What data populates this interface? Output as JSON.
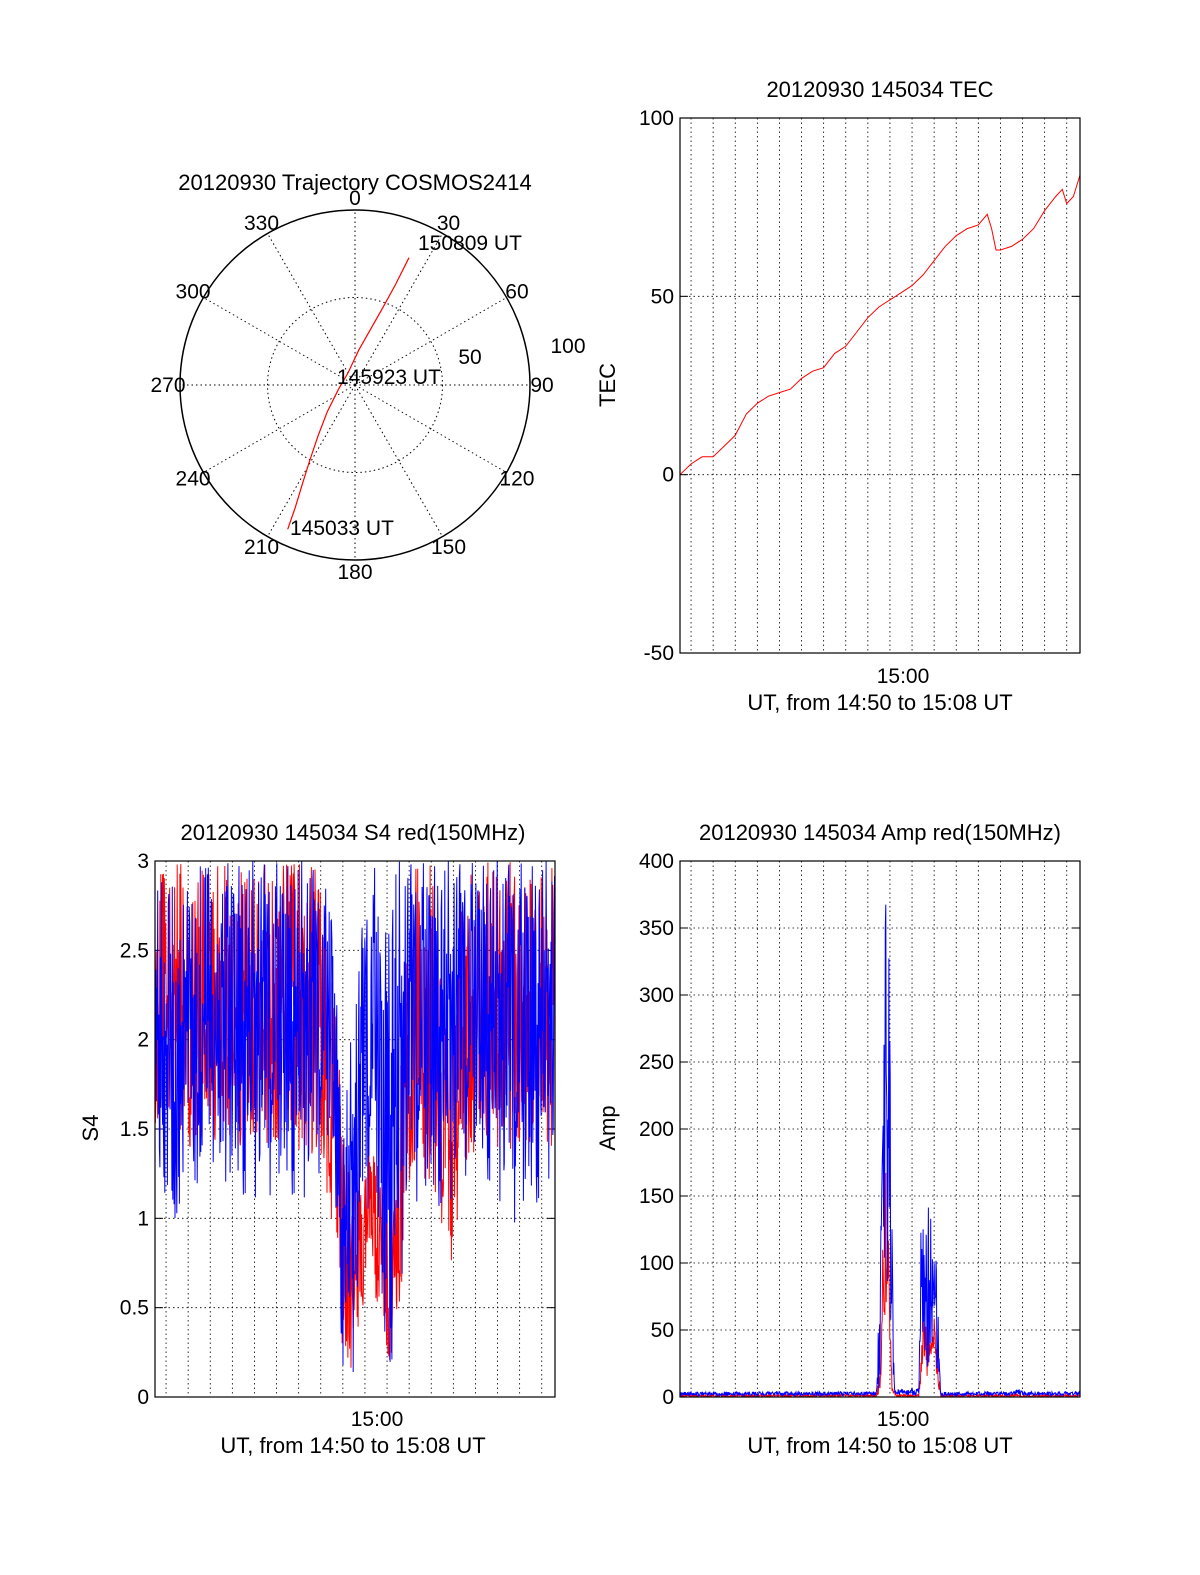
{
  "colors": {
    "red": "#ff0000",
    "blue": "#0000ff",
    "axis": "#000000",
    "grid": "#000000"
  },
  "chart_data": [
    {
      "type": "polar",
      "title": "20120930 Trajectory COSMOS2414",
      "angle_ticks": [
        "0",
        "30",
        "60",
        "90",
        "120",
        "150",
        "180",
        "210",
        "240",
        "270",
        "300",
        "330"
      ],
      "radial_ticks": [
        "50",
        "100"
      ],
      "grid": true,
      "annotations": [
        "150809 UT",
        "145923 UT",
        "145033 UT"
      ],
      "series": [
        {
          "color": "red",
          "points": [
            {
              "az": 205,
              "elev_r": 91
            },
            {
              "az": 206,
              "elev_r": 78
            },
            {
              "az": 208,
              "elev_r": 64
            },
            {
              "az": 211,
              "elev_r": 50
            },
            {
              "az": 216,
              "elev_r": 36
            },
            {
              "az": 226,
              "elev_r": 22
            },
            {
              "az": 254,
              "elev_r": 10
            },
            {
              "az": 330,
              "elev_r": 8
            },
            {
              "az": 6,
              "elev_r": 20
            },
            {
              "az": 16,
              "elev_r": 34
            },
            {
              "az": 20,
              "elev_r": 48
            },
            {
              "az": 22,
              "elev_r": 62
            },
            {
              "az": 23,
              "elev_r": 79
            }
          ]
        }
      ]
    },
    {
      "type": "line",
      "title": "20120930 145034 TEC",
      "ylabel": "TEC",
      "xlabel": "UT, from 14:50 to 15:08 UT",
      "xtick_labels": [
        "15:00"
      ],
      "xlim_min": [
        -9.5,
        8.6
      ],
      "ylim": [
        -50,
        100
      ],
      "yticks": [
        -50,
        0,
        50,
        100
      ],
      "grid": true,
      "series": [
        {
          "color": "red",
          "points": [
            [
              -9.5,
              0
            ],
            [
              -9.0,
              3
            ],
            [
              -8.5,
              5
            ],
            [
              -8.0,
              5
            ],
            [
              -7.5,
              8
            ],
            [
              -7.0,
              11
            ],
            [
              -6.5,
              17
            ],
            [
              -6.0,
              20
            ],
            [
              -5.5,
              22
            ],
            [
              -5.0,
              23
            ],
            [
              -4.5,
              24
            ],
            [
              -4.0,
              27
            ],
            [
              -3.5,
              29
            ],
            [
              -3.0,
              30
            ],
            [
              -2.5,
              34
            ],
            [
              -2.0,
              36
            ],
            [
              -1.5,
              40
            ],
            [
              -1.0,
              44
            ],
            [
              -0.5,
              47
            ],
            [
              0.0,
              49
            ],
            [
              0.5,
              51
            ],
            [
              1.0,
              53
            ],
            [
              1.5,
              56
            ],
            [
              2.0,
              60
            ],
            [
              2.5,
              64
            ],
            [
              3.0,
              67
            ],
            [
              3.5,
              69
            ],
            [
              4.0,
              70
            ],
            [
              4.4,
              73
            ],
            [
              4.6,
              69
            ],
            [
              4.8,
              63
            ],
            [
              5.0,
              63
            ],
            [
              5.5,
              64
            ],
            [
              6.0,
              66
            ],
            [
              6.5,
              69
            ],
            [
              7.0,
              74
            ],
            [
              7.5,
              78
            ],
            [
              7.8,
              80
            ],
            [
              8.0,
              76
            ],
            [
              8.3,
              78
            ],
            [
              8.6,
              84
            ]
          ]
        }
      ]
    },
    {
      "type": "line",
      "title": "20120930 145034 S4 red(150MHz)",
      "ylabel": "S4",
      "xlabel": "UT, from 14:50 to 15:08 UT",
      "xtick_labels": [
        "15:00"
      ],
      "xlim_min": [
        -9.5,
        8.6
      ],
      "ylim": [
        0,
        3
      ],
      "yticks": [
        0,
        0.5,
        1,
        1.5,
        2,
        2.5,
        3
      ],
      "ytick_labels": [
        "0",
        "0.5",
        "1",
        "1.5",
        "2",
        "2.5",
        "3"
      ],
      "grid": true,
      "series": [
        {
          "color": "red",
          "envelope": [
            [
              -9.5,
              1.5,
              3.0
            ],
            [
              -8.1,
              1.4,
              3.0
            ],
            [
              -8.0,
              0.0,
              3.0
            ],
            [
              -7.9,
              1.4,
              3.0
            ],
            [
              -6.0,
              1.4,
              3.0
            ],
            [
              -4.0,
              1.4,
              3.0
            ],
            [
              -2.0,
              1.3,
              3.0
            ],
            [
              -1.2,
              0.8,
              2.0
            ],
            [
              -1.0,
              0.2,
              1.5
            ],
            [
              -0.6,
              0.15,
              1.2
            ],
            [
              -0.2,
              0.3,
              1.3
            ],
            [
              0.2,
              0.8,
              1.5
            ],
            [
              0.8,
              0.25,
              1.2
            ],
            [
              1.2,
              0.15,
              1.1
            ],
            [
              1.4,
              0.2,
              1.2
            ],
            [
              2.0,
              1.2,
              3.0
            ],
            [
              3.0,
              1.2,
              3.0
            ],
            [
              4.0,
              0.7,
              2.0
            ],
            [
              4.5,
              1.3,
              3.0
            ],
            [
              8.6,
              1.4,
              3.0
            ]
          ]
        },
        {
          "color": "blue",
          "envelope": [
            [
              -9.5,
              1.3,
              3.0
            ],
            [
              -9.0,
              0.85,
              3.0
            ],
            [
              -8.0,
              1.2,
              3.0
            ],
            [
              -6.0,
              1.1,
              3.0
            ],
            [
              -4.0,
              1.1,
              3.0
            ],
            [
              -2.5,
              1.1,
              3.0
            ],
            [
              -1.5,
              1.4,
              2.8
            ],
            [
              -1.0,
              0.15,
              1.5
            ],
            [
              -0.5,
              0.12,
              2.2
            ],
            [
              0.0,
              1.0,
              2.8
            ],
            [
              0.5,
              1.1,
              3.0
            ],
            [
              0.8,
              0.15,
              2.5
            ],
            [
              1.3,
              0.15,
              3.0
            ],
            [
              2.0,
              1.1,
              3.0
            ],
            [
              3.0,
              1.0,
              3.0
            ],
            [
              4.0,
              1.1,
              3.0
            ],
            [
              5.0,
              1.3,
              3.0
            ],
            [
              6.0,
              1.1,
              3.0
            ],
            [
              7.0,
              0.9,
              3.0
            ],
            [
              8.0,
              1.1,
              3.0
            ],
            [
              8.6,
              1.3,
              3.0
            ]
          ]
        }
      ]
    },
    {
      "type": "line",
      "title": "20120930 145034 Amp red(150MHz)",
      "ylabel": "Amp",
      "xlabel": "UT, from 14:50 to 15:08 UT",
      "xtick_labels": [
        "15:00"
      ],
      "xlim_min": [
        -9.5,
        8.6
      ],
      "ylim": [
        0,
        400
      ],
      "yticks": [
        0,
        50,
        100,
        150,
        200,
        250,
        300,
        350,
        400
      ],
      "grid": true,
      "series": [
        {
          "color": "red",
          "envelope": [
            [
              -9.5,
              0,
              2
            ],
            [
              -0.6,
              0,
              2
            ],
            [
              -0.4,
              5,
              30
            ],
            [
              -0.3,
              50,
              160
            ],
            [
              -0.1,
              60,
              180
            ],
            [
              0.0,
              10,
              60
            ],
            [
              0.1,
              2,
              8
            ],
            [
              0.3,
              0,
              2
            ],
            [
              1.3,
              0,
              2
            ],
            [
              1.5,
              20,
              60
            ],
            [
              1.8,
              10,
              50
            ],
            [
              2.0,
              20,
              60
            ],
            [
              2.2,
              5,
              20
            ],
            [
              2.3,
              0,
              2
            ],
            [
              8.6,
              0,
              2
            ]
          ]
        },
        {
          "color": "blue",
          "envelope": [
            [
              -9.5,
              1,
              4
            ],
            [
              -0.6,
              1,
              4
            ],
            [
              -0.4,
              10,
              150
            ],
            [
              -0.2,
              100,
              370
            ],
            [
              0.0,
              60,
              330
            ],
            [
              0.1,
              20,
              120
            ],
            [
              0.2,
              2,
              6
            ],
            [
              1.3,
              1,
              6
            ],
            [
              1.4,
              30,
              145
            ],
            [
              1.7,
              20,
              140
            ],
            [
              2.0,
              40,
              155
            ],
            [
              2.2,
              10,
              60
            ],
            [
              2.3,
              1,
              4
            ],
            [
              5.5,
              1,
              4
            ],
            [
              5.8,
              1,
              6
            ],
            [
              6.2,
              1,
              4
            ],
            [
              8.6,
              1,
              4
            ]
          ]
        }
      ]
    }
  ]
}
